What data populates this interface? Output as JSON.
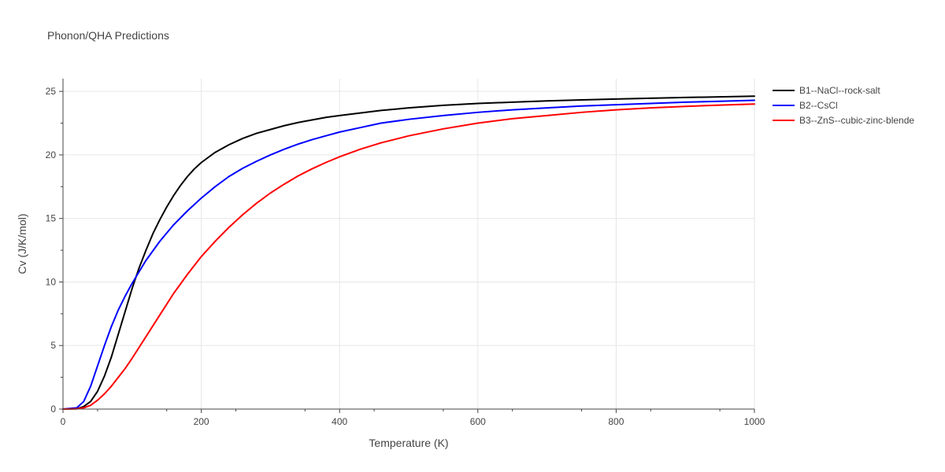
{
  "chart_data": {
    "type": "line",
    "title": "Phonon/QHA Predictions",
    "xlabel": "Temperature (K)",
    "ylabel": "Cv (J/K/mol)",
    "xlim": [
      0,
      1000
    ],
    "ylim": [
      0,
      26
    ],
    "xticks": [
      0,
      200,
      400,
      600,
      800,
      1000
    ],
    "yticks": [
      0,
      5,
      10,
      15,
      20,
      25
    ],
    "grid": true,
    "legend_position": "top-right outside",
    "series": [
      {
        "name": "B1--NaCl--rock-salt",
        "color": "#000000",
        "x": [
          0,
          20,
          30,
          40,
          50,
          60,
          70,
          80,
          90,
          100,
          110,
          120,
          130,
          140,
          150,
          160,
          170,
          180,
          190,
          200,
          220,
          240,
          260,
          280,
          300,
          320,
          340,
          360,
          380,
          400,
          430,
          460,
          500,
          550,
          600,
          650,
          700,
          750,
          800,
          850,
          900,
          950,
          1000
        ],
        "y": [
          0,
          0.02,
          0.2,
          0.6,
          1.4,
          2.6,
          4.1,
          5.9,
          7.7,
          9.5,
          11.1,
          12.5,
          13.8,
          14.9,
          15.9,
          16.8,
          17.6,
          18.3,
          18.9,
          19.4,
          20.2,
          20.8,
          21.3,
          21.7,
          22.0,
          22.3,
          22.55,
          22.75,
          22.95,
          23.1,
          23.3,
          23.5,
          23.7,
          23.9,
          24.05,
          24.15,
          24.25,
          24.33,
          24.4,
          24.46,
          24.52,
          24.57,
          24.62
        ]
      },
      {
        "name": "B2--CsCl",
        "color": "#0000ff",
        "x": [
          0,
          20,
          30,
          40,
          50,
          60,
          70,
          80,
          90,
          100,
          110,
          120,
          140,
          160,
          180,
          200,
          220,
          240,
          260,
          280,
          300,
          320,
          340,
          360,
          380,
          400,
          430,
          460,
          500,
          550,
          600,
          650,
          700,
          750,
          800,
          850,
          900,
          950,
          1000
        ],
        "y": [
          0,
          0.1,
          0.6,
          1.8,
          3.4,
          5.0,
          6.5,
          7.8,
          8.9,
          9.9,
          10.8,
          11.7,
          13.2,
          14.5,
          15.6,
          16.6,
          17.5,
          18.3,
          18.95,
          19.5,
          20.0,
          20.45,
          20.85,
          21.2,
          21.5,
          21.8,
          22.15,
          22.5,
          22.8,
          23.1,
          23.35,
          23.55,
          23.7,
          23.85,
          23.95,
          24.05,
          24.15,
          24.22,
          24.3
        ]
      },
      {
        "name": "B3--ZnS--cubic-zinc-blende",
        "color": "#ff0000",
        "x": [
          0,
          20,
          30,
          40,
          50,
          60,
          70,
          80,
          90,
          100,
          120,
          140,
          160,
          180,
          200,
          220,
          240,
          260,
          280,
          300,
          320,
          340,
          360,
          380,
          400,
          430,
          460,
          500,
          550,
          600,
          650,
          700,
          750,
          800,
          850,
          900,
          950,
          1000
        ],
        "y": [
          0,
          0.02,
          0.1,
          0.3,
          0.7,
          1.2,
          1.8,
          2.5,
          3.2,
          4.0,
          5.7,
          7.4,
          9.1,
          10.6,
          12.0,
          13.2,
          14.3,
          15.3,
          16.2,
          17.0,
          17.7,
          18.35,
          18.9,
          19.4,
          19.85,
          20.45,
          20.95,
          21.5,
          22.05,
          22.5,
          22.85,
          23.1,
          23.35,
          23.55,
          23.7,
          23.82,
          23.92,
          24.0
        ]
      }
    ]
  }
}
